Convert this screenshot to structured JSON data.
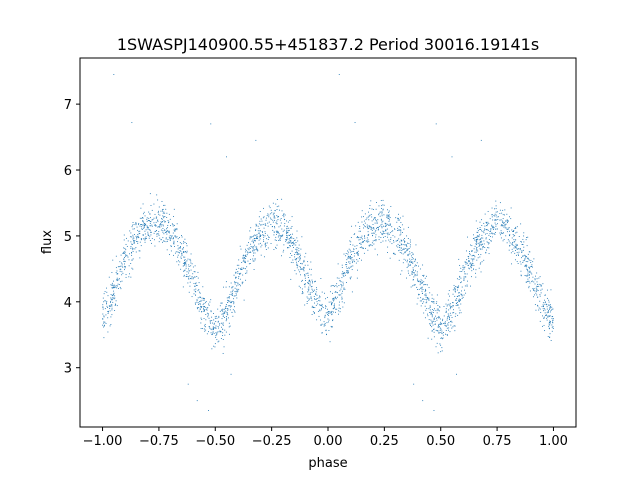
{
  "chart_data": {
    "type": "scatter",
    "title": "1SWASPJ140900.55+451837.2 Period 30016.19141s",
    "xlabel": "phase",
    "ylabel": "flux",
    "xlim": [
      -1.1,
      1.1
    ],
    "ylim": [
      2.1,
      7.7
    ],
    "xticks": [
      -1.0,
      -0.75,
      -0.5,
      -0.25,
      0.0,
      0.25,
      0.5,
      0.75,
      1.0
    ],
    "xtick_labels": [
      "−1.00",
      "−0.75",
      "−0.50",
      "−0.25",
      "0.00",
      "0.25",
      "0.50",
      "0.75",
      "1.00"
    ],
    "yticks": [
      3,
      4,
      5,
      6,
      7
    ],
    "ytick_labels": [
      "3",
      "4",
      "5",
      "6",
      "7"
    ],
    "grid": false,
    "marker_color": "#1f77b4",
    "series": [
      {
        "x": [
          -1.0,
          -0.95,
          -0.9,
          -0.85,
          -0.8,
          -0.75,
          -0.7,
          -0.65,
          -0.6,
          -0.55,
          -0.5,
          -0.45,
          -0.4,
          -0.35,
          -0.3,
          -0.25,
          -0.2,
          -0.15,
          -0.1,
          -0.05,
          0.0,
          0.05,
          0.1,
          0.15,
          0.2,
          0.25,
          0.3,
          0.35,
          0.4,
          0.45,
          0.5,
          0.55,
          0.6,
          0.65,
          0.7,
          0.75,
          0.8,
          0.85,
          0.9,
          0.95,
          1.0
        ],
        "y": [
          3.75,
          4.15,
          4.65,
          5.0,
          5.15,
          5.2,
          5.05,
          4.75,
          4.35,
          3.85,
          3.6,
          3.85,
          4.35,
          4.75,
          5.05,
          5.25,
          5.1,
          4.8,
          4.4,
          4.0,
          3.75,
          4.15,
          4.65,
          5.0,
          5.15,
          5.2,
          5.05,
          4.75,
          4.35,
          3.85,
          3.6,
          3.85,
          4.35,
          4.75,
          5.05,
          5.25,
          5.1,
          4.8,
          4.4,
          4.0,
          3.75
        ],
        "scatter_sd": 0.17,
        "point_count": 3000
      }
    ],
    "outliers": [
      {
        "x": -0.95,
        "y": 7.45
      },
      {
        "x": 0.05,
        "y": 7.45
      },
      {
        "x": -0.87,
        "y": 6.72
      },
      {
        "x": -0.52,
        "y": 6.7
      },
      {
        "x": 0.12,
        "y": 6.72
      },
      {
        "x": 0.48,
        "y": 6.7
      },
      {
        "x": -0.32,
        "y": 6.45
      },
      {
        "x": 0.68,
        "y": 6.45
      },
      {
        "x": -0.45,
        "y": 6.2
      },
      {
        "x": 0.55,
        "y": 6.2
      },
      {
        "x": -0.58,
        "y": 2.5
      },
      {
        "x": -0.53,
        "y": 2.35
      },
      {
        "x": 0.42,
        "y": 2.5
      },
      {
        "x": 0.47,
        "y": 2.35
      },
      {
        "x": -0.62,
        "y": 2.75
      },
      {
        "x": 0.38,
        "y": 2.75
      },
      {
        "x": -0.43,
        "y": 2.9
      },
      {
        "x": 0.57,
        "y": 2.9
      }
    ]
  }
}
